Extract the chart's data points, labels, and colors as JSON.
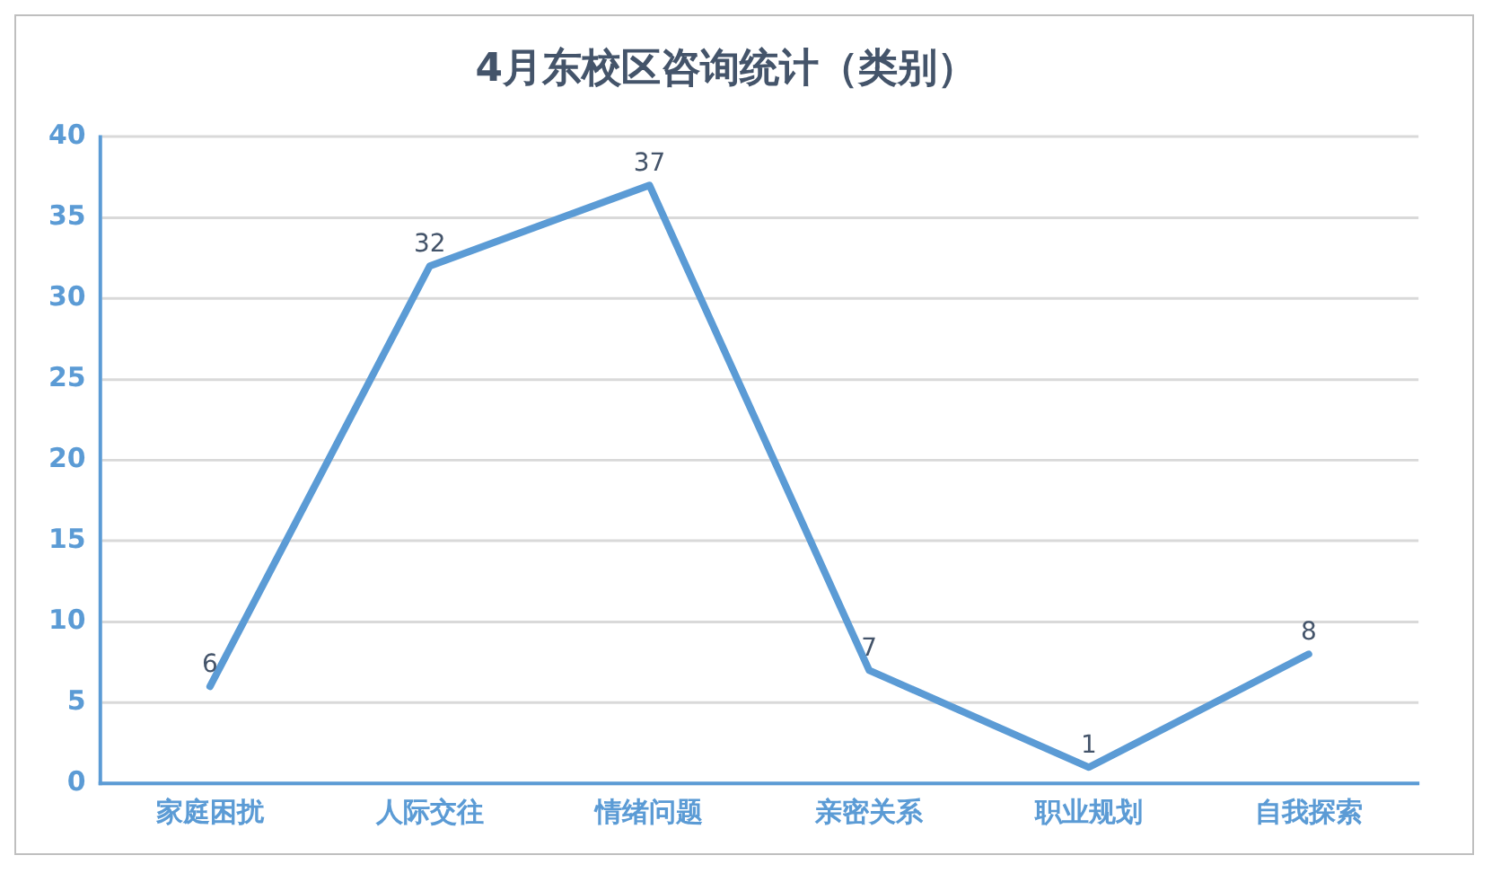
{
  "chart_data": {
    "type": "line",
    "title": "4月东校区咨询统计（类别）",
    "categories": [
      "家庭困扰",
      "人际交往",
      "情绪问题",
      "亲密关系",
      "职业规划",
      "自我探索"
    ],
    "series": [
      {
        "color": "#5b9bd5",
        "values": [
          6,
          32,
          37,
          7,
          1,
          8
        ]
      }
    ],
    "ylim": [
      0,
      40
    ],
    "yticks": [
      0,
      5,
      10,
      15,
      20,
      25,
      30,
      35,
      40
    ],
    "grid": "y",
    "legend": false,
    "marker": "none",
    "line_style": "solid",
    "data_labels": true
  }
}
